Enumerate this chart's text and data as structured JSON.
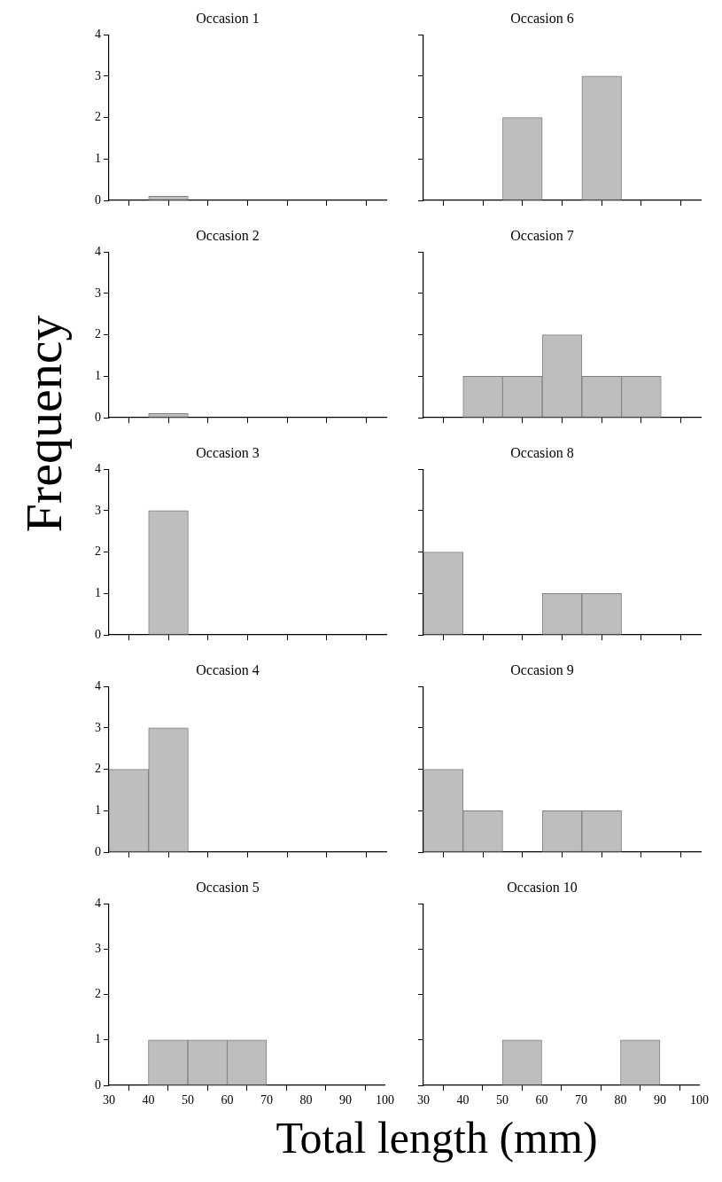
{
  "chart_data": [
    {
      "type": "histogram",
      "title": "Occasion 1",
      "ylabel": "Frequency",
      "bins": [
        30,
        40,
        50,
        60,
        70,
        80,
        90,
        100
      ],
      "values": [
        0,
        0.1,
        0,
        0,
        0,
        0,
        0
      ],
      "color": "#bebebe",
      "xlim": [
        30,
        100
      ],
      "xticks": [
        30,
        40,
        50,
        60,
        70,
        80,
        90,
        100
      ],
      "ylim": [
        0,
        4
      ],
      "yticks": [
        0,
        1,
        2,
        3,
        4
      ],
      "grid": false,
      "tick_labels": "y"
    },
    {
      "type": "histogram",
      "title": "Occasion 6",
      "bins": [
        30,
        40,
        50,
        60,
        70,
        80,
        90,
        100
      ],
      "values": [
        0,
        0,
        2,
        0,
        3,
        0,
        0
      ],
      "color": "#bebebe",
      "xlim": [
        30,
        100
      ],
      "xticks": [
        30,
        40,
        50,
        60,
        70,
        80,
        90,
        100
      ],
      "ylim": [
        0,
        4
      ],
      "yticks": [
        0,
        1,
        2,
        3,
        4
      ],
      "grid": false,
      "tick_labels": false
    },
    {
      "type": "histogram",
      "title": "Occasion 2",
      "bins": [
        30,
        40,
        50,
        60,
        70,
        80,
        90,
        100
      ],
      "values": [
        0,
        0.1,
        0,
        0,
        0,
        0,
        0
      ],
      "color": "#bebebe",
      "xlim": [
        30,
        100
      ],
      "xticks": [
        30,
        40,
        50,
        60,
        70,
        80,
        90,
        100
      ],
      "ylim": [
        0,
        4
      ],
      "yticks": [
        0,
        1,
        2,
        3,
        4
      ],
      "grid": false,
      "tick_labels": "y"
    },
    {
      "type": "histogram",
      "title": "Occasion 7",
      "bins": [
        30,
        40,
        50,
        60,
        70,
        80,
        90,
        100
      ],
      "values": [
        0,
        1,
        1,
        2,
        1,
        1,
        0
      ],
      "color": "#bebebe",
      "xlim": [
        30,
        100
      ],
      "xticks": [
        30,
        40,
        50,
        60,
        70,
        80,
        90,
        100
      ],
      "ylim": [
        0,
        4
      ],
      "yticks": [
        0,
        1,
        2,
        3,
        4
      ],
      "grid": false,
      "tick_labels": false
    },
    {
      "type": "histogram",
      "title": "Occasion 3",
      "bins": [
        30,
        40,
        50,
        60,
        70,
        80,
        90,
        100
      ],
      "values": [
        0,
        3,
        0,
        0,
        0,
        0,
        0
      ],
      "color": "#bebebe",
      "xlim": [
        30,
        100
      ],
      "xticks": [
        30,
        40,
        50,
        60,
        70,
        80,
        90,
        100
      ],
      "ylim": [
        0,
        4
      ],
      "yticks": [
        0,
        1,
        2,
        3,
        4
      ],
      "grid": false,
      "tick_labels": "y"
    },
    {
      "type": "histogram",
      "title": "Occasion 8",
      "bins": [
        30,
        40,
        50,
        60,
        70,
        80,
        90,
        100
      ],
      "values": [
        2,
        0,
        0,
        1,
        1,
        0,
        0
      ],
      "color": "#bebebe",
      "xlim": [
        30,
        100
      ],
      "xticks": [
        30,
        40,
        50,
        60,
        70,
        80,
        90,
        100
      ],
      "ylim": [
        0,
        4
      ],
      "yticks": [
        0,
        1,
        2,
        3,
        4
      ],
      "grid": false,
      "tick_labels": false
    },
    {
      "type": "histogram",
      "title": "Occasion 4",
      "bins": [
        30,
        40,
        50,
        60,
        70,
        80,
        90,
        100
      ],
      "values": [
        2,
        3,
        0,
        0,
        0,
        0,
        0
      ],
      "color": "#bebebe",
      "xlim": [
        30,
        100
      ],
      "xticks": [
        30,
        40,
        50,
        60,
        70,
        80,
        90,
        100
      ],
      "ylim": [
        0,
        4
      ],
      "yticks": [
        0,
        1,
        2,
        3,
        4
      ],
      "grid": false,
      "tick_labels": "y"
    },
    {
      "type": "histogram",
      "title": "Occasion 9",
      "bins": [
        30,
        40,
        50,
        60,
        70,
        80,
        90,
        100
      ],
      "values": [
        2,
        1,
        0,
        1,
        1,
        0,
        0
      ],
      "color": "#bebebe",
      "xlim": [
        30,
        100
      ],
      "xticks": [
        30,
        40,
        50,
        60,
        70,
        80,
        90,
        100
      ],
      "ylim": [
        0,
        4
      ],
      "yticks": [
        0,
        1,
        2,
        3,
        4
      ],
      "grid": false,
      "tick_labels": false
    },
    {
      "type": "histogram",
      "title": "Occasion 5",
      "bins": [
        30,
        40,
        50,
        60,
        70,
        80,
        90,
        100
      ],
      "values": [
        0,
        1,
        1,
        1,
        0,
        0,
        0
      ],
      "color": "#bebebe",
      "xlim": [
        30,
        100
      ],
      "xticks": [
        30,
        40,
        50,
        60,
        70,
        80,
        90,
        100
      ],
      "ylim": [
        0,
        4
      ],
      "yticks": [
        0,
        1,
        2,
        3,
        4
      ],
      "grid": false
    },
    {
      "type": "histogram",
      "title": "Occasion 10",
      "xlabel": "Total length (mm)",
      "bins": [
        30,
        40,
        50,
        60,
        70,
        80,
        90,
        100
      ],
      "values": [
        0,
        0,
        1,
        0,
        0,
        1,
        0
      ],
      "color": "#bebebe",
      "xlim": [
        30,
        100
      ],
      "xticks": [
        30,
        40,
        50,
        60,
        70,
        80,
        90,
        100
      ],
      "ylim": [
        0,
        4
      ],
      "yticks": [
        0,
        1,
        2,
        3,
        4
      ],
      "grid": false,
      "tick_labels": "x"
    }
  ]
}
